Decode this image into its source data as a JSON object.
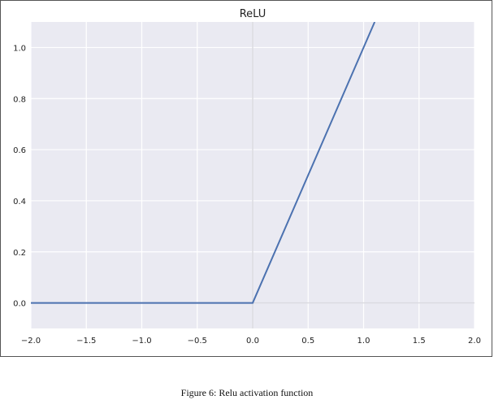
{
  "chart_data": {
    "type": "line",
    "title": "ReLU",
    "xlabel": "",
    "ylabel": "",
    "xlim": [
      -2.0,
      2.0
    ],
    "ylim": [
      -0.1,
      1.1
    ],
    "xticks": [
      -2.0,
      -1.5,
      -1.0,
      -0.5,
      0.0,
      0.5,
      1.0,
      1.5,
      2.0
    ],
    "xtick_labels": [
      "−2.0",
      "−1.5",
      "−1.0",
      "−0.5",
      "0.0",
      "0.5",
      "1.0",
      "1.5",
      "2.0"
    ],
    "yticks": [
      0.0,
      0.2,
      0.4,
      0.6,
      0.8,
      1.0
    ],
    "ytick_labels": [
      "0.0",
      "0.2",
      "0.4",
      "0.6",
      "0.8",
      "1.0"
    ],
    "grid": true,
    "background_color": "#eaeaf2",
    "line_color": "#4c72b0",
    "series": [
      {
        "x": [
          -2.0,
          0.0,
          1.1
        ],
        "y": [
          0.0,
          0.0,
          1.1
        ]
      }
    ]
  },
  "caption": "Figure 6: Relu activation function"
}
